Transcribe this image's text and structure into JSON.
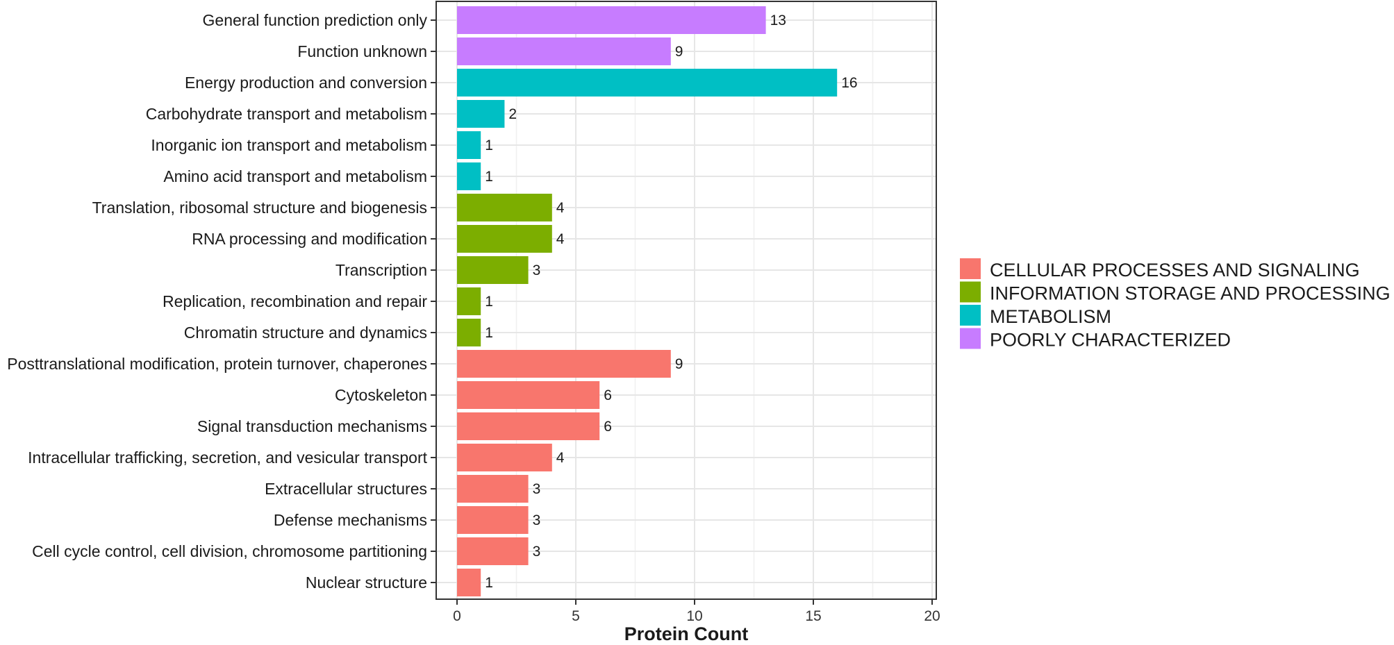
{
  "chart_data": {
    "type": "bar",
    "orientation": "horizontal",
    "title": "",
    "xlabel": "Protein Count",
    "ylabel": "",
    "xlim": [
      0,
      20
    ],
    "xticks": [
      0,
      5,
      10,
      15,
      20
    ],
    "grid": true,
    "legend_position": "right",
    "categories": [
      "General function prediction only",
      "Function unknown",
      "Energy production and conversion",
      "Carbohydrate transport and metabolism",
      "Inorganic ion transport and metabolism",
      "Amino acid transport and metabolism",
      "Translation, ribosomal structure and biogenesis",
      "RNA processing and modification",
      "Transcription",
      "Replication, recombination and repair",
      "Chromatin structure and dynamics",
      "Posttranslational modification, protein turnover, chaperones",
      "Cytoskeleton",
      "Signal transduction mechanisms",
      "Intracellular trafficking, secretion, and vesicular transport",
      "Extracellular structures",
      "Defense mechanisms",
      "Cell cycle control, cell division, chromosome partitioning",
      "Nuclear structure"
    ],
    "values": [
      13,
      9,
      16,
      2,
      1,
      1,
      4,
      4,
      3,
      1,
      1,
      9,
      6,
      6,
      4,
      3,
      3,
      3,
      1
    ],
    "groups": [
      3,
      3,
      2,
      2,
      2,
      2,
      1,
      1,
      1,
      1,
      1,
      0,
      0,
      0,
      0,
      0,
      0,
      0,
      0
    ],
    "legend": [
      {
        "name": "CELLULAR PROCESSES AND SIGNALING",
        "color": "#F8766D"
      },
      {
        "name": "INFORMATION STORAGE AND PROCESSING",
        "color": "#7CAE00"
      },
      {
        "name": "METABOLISM",
        "color": "#00BFC4"
      },
      {
        "name": "POORLY CHARACTERIZED",
        "color": "#C77CFF"
      }
    ]
  }
}
